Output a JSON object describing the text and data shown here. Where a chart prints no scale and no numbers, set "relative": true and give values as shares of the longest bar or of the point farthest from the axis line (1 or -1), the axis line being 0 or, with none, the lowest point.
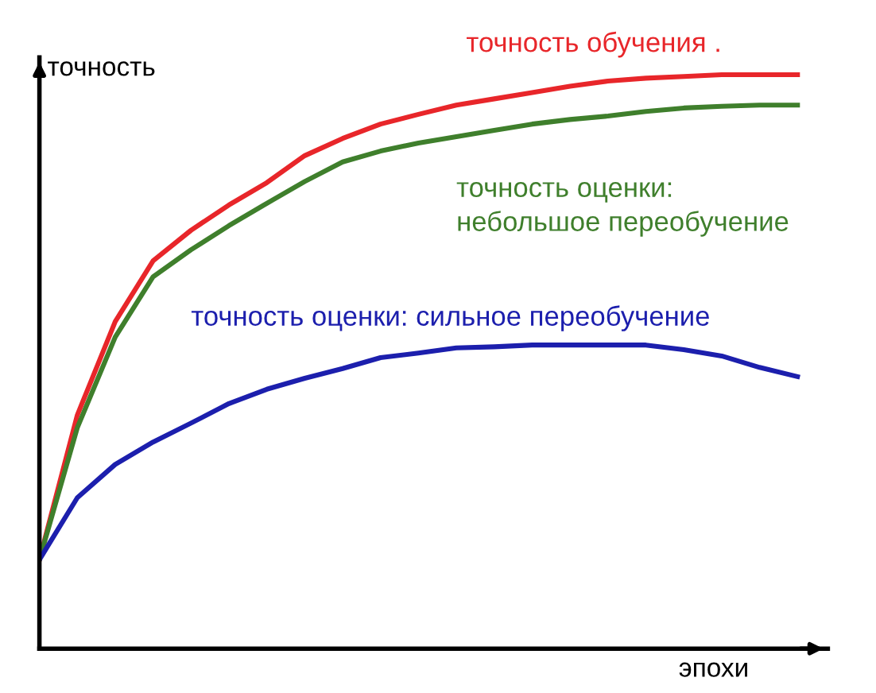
{
  "chart_data": {
    "type": "line",
    "relative": true,
    "xlabel": "эпохи",
    "ylabel": "точность",
    "legend": false,
    "marker": "none",
    "line_style": "solid",
    "categories": [
      null,
      null,
      null,
      null,
      null,
      null,
      null,
      null,
      null,
      null,
      null,
      null,
      null,
      null,
      null,
      null,
      null,
      null,
      null,
      null,
      null
    ],
    "series": [
      {
        "name": "точность обучения .",
        "color": "#e8262a",
        "values": [
          0.155,
          0.407,
          0.57,
          0.676,
          0.729,
          0.773,
          0.812,
          0.859,
          0.889,
          0.914,
          0.931,
          0.947,
          0.958,
          0.969,
          0.98,
          0.989,
          0.994,
          0.997,
          1,
          1,
          1
        ]
      },
      {
        "name": "точность оценки:\nнебольшое переобучение",
        "color": "#3f7f2c",
        "values": [
          0.155,
          0.385,
          0.543,
          0.648,
          0.695,
          0.737,
          0.776,
          0.814,
          0.848,
          0.867,
          0.881,
          0.892,
          0.903,
          0.914,
          0.922,
          0.928,
          0.936,
          0.942,
          0.945,
          0.947,
          0.947
        ]
      },
      {
        "name": "точность оценки: сильное переобучение",
        "color": "#1c1fad",
        "values": [
          0.155,
          0.263,
          0.321,
          0.36,
          0.393,
          0.427,
          0.452,
          0.471,
          0.488,
          0.507,
          0.515,
          0.524,
          0.526,
          0.529,
          0.529,
          0.529,
          0.529,
          0.521,
          0.51,
          0.49,
          0.474
        ]
      }
    ]
  }
}
